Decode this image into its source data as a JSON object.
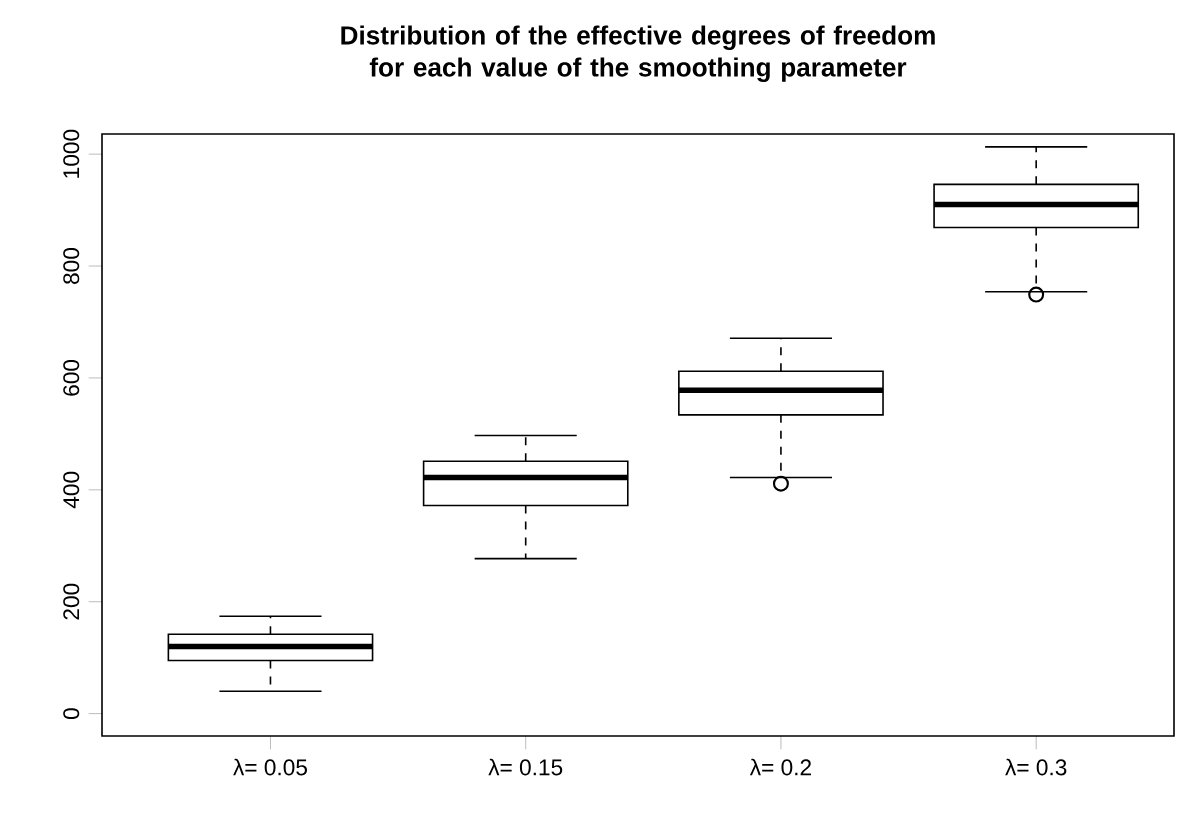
{
  "chart_data": {
    "type": "box",
    "title": "Distribution of the effective degrees of freedom for each value of the smoothing parameter",
    "categories": [
      "λ= 0.05",
      "λ= 0.15",
      "λ= 0.2",
      "λ= 0.3"
    ],
    "boxes": [
      {
        "low": 40,
        "q1": 95,
        "median": 120,
        "q3": 142,
        "high": 174
      },
      {
        "low": 277,
        "q1": 372,
        "median": 422,
        "q3": 451,
        "high": 497
      },
      {
        "low": 422,
        "q1": 534,
        "median": 578,
        "q3": 612,
        "high": 671,
        "outliers": [
          411
        ]
      },
      {
        "low": 754,
        "q1": 869,
        "median": 910,
        "q3": 946,
        "high": 1013,
        "outliers": [
          749
        ]
      }
    ],
    "ylim": [
      -40,
      1036
    ],
    "yticks": [
      0,
      200,
      400,
      600,
      800,
      1000
    ]
  }
}
